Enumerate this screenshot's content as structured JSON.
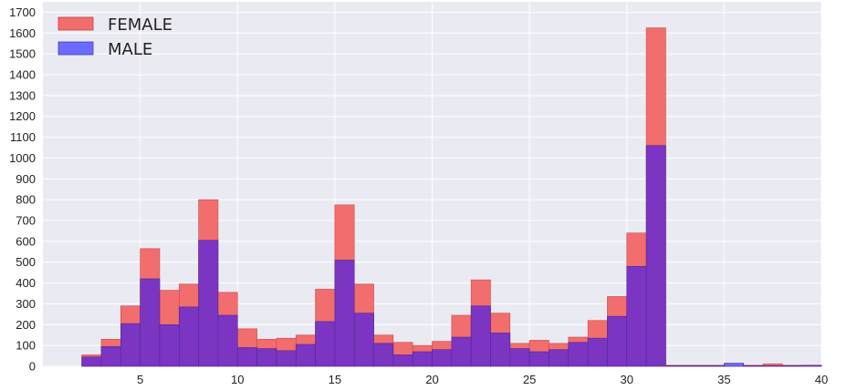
{
  "chart_data": {
    "type": "bar",
    "stacked": false,
    "overlapping": true,
    "bin_start": 2,
    "bin_width": 1,
    "xlim": [
      0,
      40
    ],
    "ylim": [
      0,
      1750
    ],
    "xticks": [
      5,
      10,
      15,
      20,
      25,
      30,
      35,
      40
    ],
    "yticks": [
      0,
      100,
      200,
      300,
      400,
      500,
      600,
      700,
      800,
      900,
      1000,
      1100,
      1200,
      1300,
      1400,
      1500,
      1600,
      1700
    ],
    "grid": true,
    "legend_position": "top-left",
    "series": [
      {
        "name": "FEMALE",
        "color": "#f26d6d",
        "values": [
          55,
          130,
          290,
          565,
          365,
          395,
          800,
          355,
          180,
          130,
          135,
          150,
          370,
          775,
          395,
          150,
          115,
          100,
          120,
          245,
          415,
          255,
          110,
          125,
          110,
          140,
          220,
          335,
          640,
          1625,
          5,
          5,
          5,
          10,
          5,
          12,
          5,
          5
        ]
      },
      {
        "name": "MALE",
        "color": "#6b6bff",
        "values": [
          45,
          95,
          205,
          420,
          200,
          285,
          605,
          245,
          90,
          85,
          75,
          105,
          215,
          510,
          255,
          110,
          55,
          70,
          80,
          140,
          290,
          160,
          85,
          70,
          80,
          115,
          135,
          240,
          480,
          1060,
          3,
          3,
          3,
          15,
          3,
          3,
          3,
          5
        ]
      }
    ],
    "overlap_color": "#7c35c2"
  }
}
